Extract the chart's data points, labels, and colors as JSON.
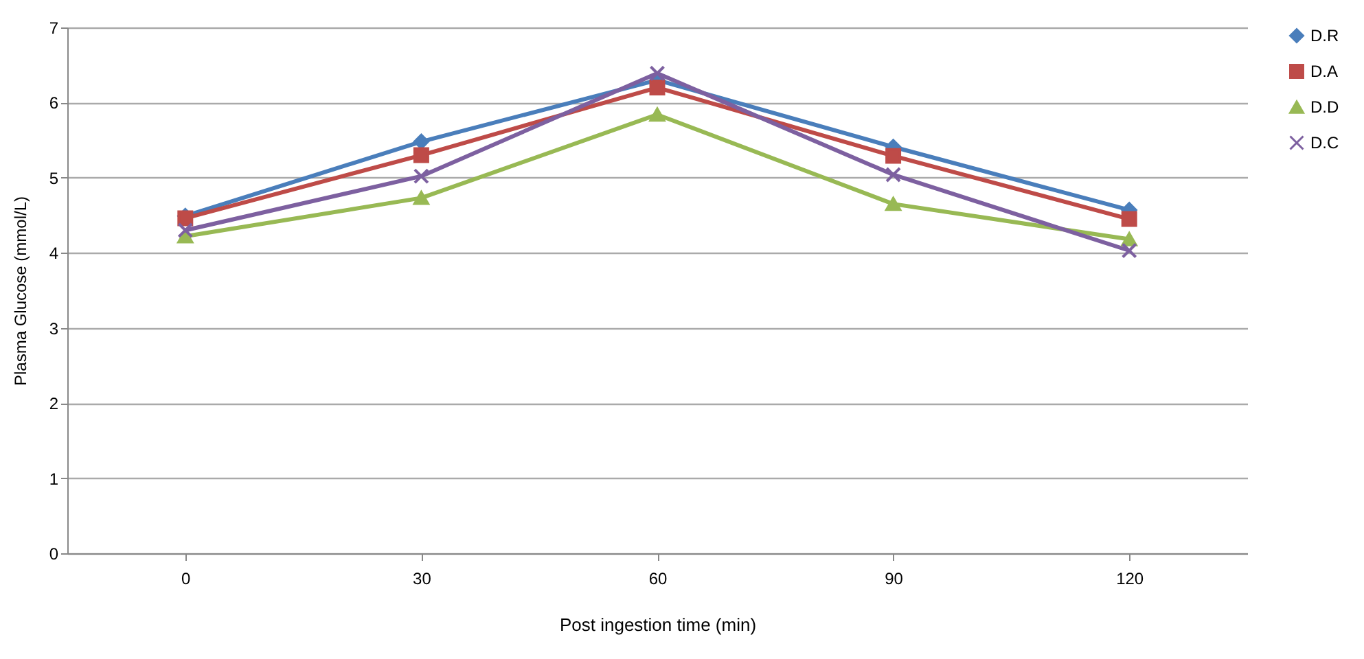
{
  "chart_data": {
    "type": "line",
    "xlabel": "Post ingestion time (min)",
    "ylabel": "Plasma Glucose (mmol/L)",
    "categories": [
      "0",
      "30",
      "60",
      "90",
      "120"
    ],
    "series": [
      {
        "name": "D.R",
        "color": "#4a7ebb",
        "marker": "diamond",
        "values": [
          4.49,
          5.48,
          6.3,
          5.41,
          4.57
        ]
      },
      {
        "name": "D.A",
        "color": "#be4b48",
        "marker": "square",
        "values": [
          4.46,
          5.3,
          6.2,
          5.29,
          4.45
        ]
      },
      {
        "name": "D.D",
        "color": "#98b954",
        "marker": "triangle",
        "values": [
          4.22,
          4.73,
          5.84,
          4.65,
          4.18
        ]
      },
      {
        "name": "D.C",
        "color": "#7d60a0",
        "marker": "cross",
        "values": [
          4.3,
          5.02,
          6.39,
          5.04,
          4.03
        ]
      }
    ],
    "ylim": [
      0,
      7
    ],
    "yticks": [
      0,
      1,
      2,
      3,
      4,
      5,
      6,
      7
    ],
    "grid": "y",
    "legend": "right"
  }
}
